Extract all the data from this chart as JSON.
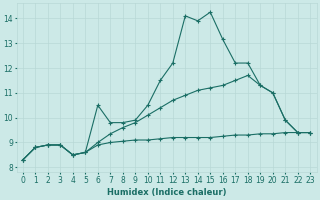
{
  "bg_color": "#cce9e7",
  "grid_color": "#b8d8d6",
  "line_color": "#1a6e65",
  "x_label": "Humidex (Indice chaleur)",
  "xlim": [
    -0.5,
    23.5
  ],
  "ylim": [
    7.8,
    14.6
  ],
  "yticks": [
    8,
    9,
    10,
    11,
    12,
    13,
    14
  ],
  "xticks": [
    0,
    1,
    2,
    3,
    4,
    5,
    6,
    7,
    8,
    9,
    10,
    11,
    12,
    13,
    14,
    15,
    16,
    17,
    18,
    19,
    20,
    21,
    22,
    23
  ],
  "line1_x": [
    0,
    1,
    2,
    3,
    4,
    5,
    6,
    7,
    8,
    9,
    10,
    11,
    12,
    13,
    14,
    15,
    16,
    17,
    18,
    19,
    20,
    21,
    22,
    23
  ],
  "line1_y": [
    8.3,
    8.8,
    8.9,
    8.9,
    8.5,
    8.6,
    10.5,
    9.8,
    9.8,
    9.9,
    10.5,
    11.5,
    12.2,
    14.1,
    13.9,
    14.25,
    13.15,
    12.2,
    12.2,
    11.3,
    11.0,
    9.9,
    9.4,
    9.4
  ],
  "line2_x": [
    0,
    1,
    2,
    3,
    4,
    5,
    6,
    7,
    8,
    9,
    10,
    11,
    12,
    13,
    14,
    15,
    16,
    17,
    18,
    19,
    20,
    21,
    22,
    23
  ],
  "line2_y": [
    8.3,
    8.8,
    8.9,
    8.9,
    8.5,
    8.6,
    9.0,
    9.35,
    9.6,
    9.8,
    10.1,
    10.4,
    10.7,
    10.9,
    11.1,
    11.2,
    11.3,
    11.5,
    11.7,
    11.3,
    11.0,
    9.9,
    9.4,
    9.4
  ],
  "line3_x": [
    0,
    1,
    2,
    3,
    4,
    5,
    6,
    7,
    8,
    9,
    10,
    11,
    12,
    13,
    14,
    15,
    16,
    17,
    18,
    19,
    20,
    21,
    22,
    23
  ],
  "line3_y": [
    8.3,
    8.8,
    8.9,
    8.9,
    8.5,
    8.6,
    8.9,
    9.0,
    9.05,
    9.1,
    9.1,
    9.15,
    9.2,
    9.2,
    9.2,
    9.2,
    9.25,
    9.3,
    9.3,
    9.35,
    9.35,
    9.4,
    9.4,
    9.4
  ]
}
